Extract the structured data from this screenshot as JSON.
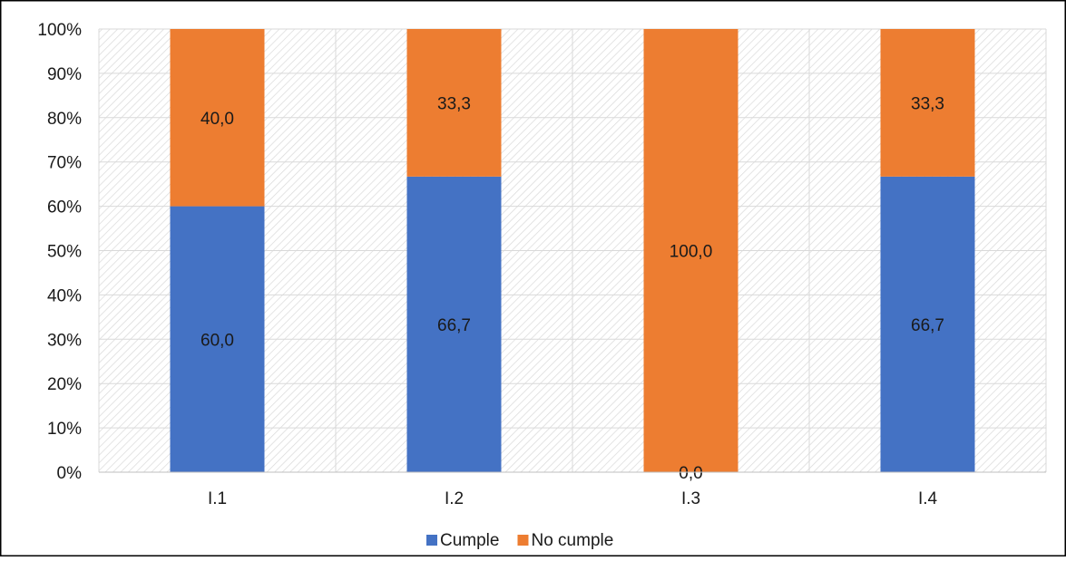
{
  "chart_data": {
    "type": "bar",
    "stacked": true,
    "percent": true,
    "categories": [
      "I.1",
      "I.2",
      "I.3",
      "I.4"
    ],
    "series": [
      {
        "name": "Cumple",
        "color": "#4472C4",
        "values": [
          60.0,
          66.7,
          0.0,
          66.7
        ],
        "labels": [
          "60,0",
          "66,7",
          "0,0",
          "66,7"
        ]
      },
      {
        "name": "No cumple",
        "color": "#ED7D31",
        "values": [
          40.0,
          33.3,
          100.0,
          33.3
        ],
        "labels": [
          "40,0",
          "33,3",
          "100,0",
          "33,3"
        ]
      }
    ],
    "y_ticks": [
      "0%",
      "10%",
      "20%",
      "30%",
      "40%",
      "50%",
      "60%",
      "70%",
      "80%",
      "90%",
      "100%"
    ],
    "ylim": [
      0,
      100
    ],
    "grid": true,
    "legend": "bottom",
    "plot_background": "hatched",
    "title": "",
    "xlabel": "",
    "ylabel": ""
  }
}
